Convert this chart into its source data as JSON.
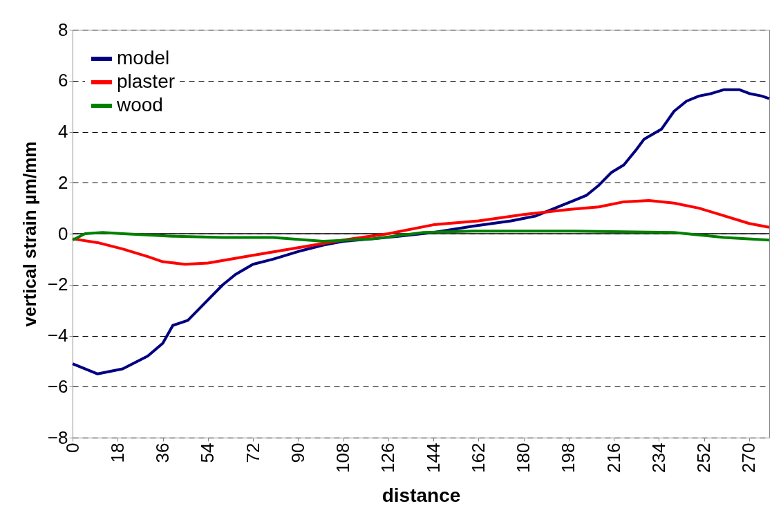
{
  "chart_data": {
    "type": "line",
    "xlabel": "distance",
    "ylabel": "vertical strain µm/mm",
    "xlim": [
      0,
      278
    ],
    "xticks": [
      0,
      18,
      36,
      54,
      72,
      90,
      108,
      126,
      144,
      162,
      180,
      198,
      216,
      234,
      252,
      270
    ],
    "ylim": [
      -8,
      8
    ],
    "yticks": [
      -8,
      -6,
      -4,
      -2,
      0,
      2,
      4,
      6,
      8
    ],
    "grid": "y",
    "legend": "top left",
    "marker": "none",
    "line_style": "solid",
    "ref_lines": [
      {
        "axis": "y",
        "value": 0,
        "color": "#000000",
        "line_style": "solid"
      }
    ],
    "series": [
      {
        "name": "model",
        "color": "#000080",
        "x": [
          0,
          10,
          20,
          30,
          36,
          40,
          46,
          50,
          55,
          60,
          65,
          72,
          80,
          90,
          100,
          108,
          120,
          130,
          144,
          160,
          175,
          185,
          195,
          200,
          205,
          210,
          215,
          220,
          225,
          228,
          235,
          240,
          245,
          250,
          255,
          260,
          266,
          270,
          275,
          278
        ],
        "values": [
          -5.1,
          -5.5,
          -5.3,
          -4.8,
          -4.3,
          -3.6,
          -3.4,
          -3.0,
          -2.5,
          -2.0,
          -1.6,
          -1.2,
          -1.0,
          -0.7,
          -0.45,
          -0.3,
          -0.2,
          -0.1,
          0.05,
          0.3,
          0.5,
          0.7,
          1.1,
          1.3,
          1.5,
          1.9,
          2.4,
          2.7,
          3.3,
          3.7,
          4.1,
          4.8,
          5.2,
          5.4,
          5.5,
          5.65,
          5.65,
          5.5,
          5.4,
          5.3
        ]
      },
      {
        "name": "plaster",
        "color": "#ff0000",
        "x": [
          0,
          10,
          20,
          30,
          36,
          45,
          54,
          60,
          72,
          90,
          108,
          126,
          144,
          162,
          180,
          198,
          210,
          220,
          230,
          240,
          250,
          260,
          270,
          278
        ],
        "values": [
          -0.2,
          -0.35,
          -0.6,
          -0.9,
          -1.1,
          -1.2,
          -1.15,
          -1.05,
          -0.85,
          -0.55,
          -0.25,
          0.0,
          0.35,
          0.5,
          0.75,
          0.95,
          1.05,
          1.25,
          1.3,
          1.2,
          1.0,
          0.7,
          0.4,
          0.25
        ]
      },
      {
        "name": "wood",
        "color": "#008000",
        "x": [
          0,
          5,
          12,
          20,
          40,
          60,
          80,
          100,
          120,
          140,
          160,
          200,
          240,
          260,
          278
        ],
        "values": [
          -0.25,
          0.0,
          0.05,
          0.0,
          -0.1,
          -0.15,
          -0.15,
          -0.3,
          -0.2,
          0.05,
          0.1,
          0.1,
          0.05,
          -0.15,
          -0.25
        ]
      }
    ]
  }
}
